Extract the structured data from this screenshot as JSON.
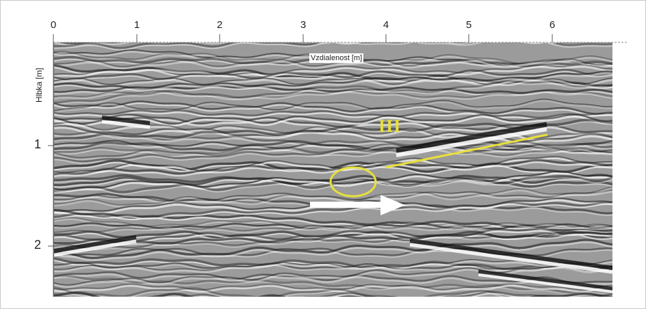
{
  "figure": {
    "x_axis": {
      "title": "Vzdialenost [m]",
      "ticks": [
        "0",
        "1",
        "2",
        "3",
        "4",
        "5",
        "6"
      ]
    },
    "y_axis": {
      "title": "Hlbka [m]",
      "ticks": [
        "1",
        "2"
      ]
    },
    "annotations": {
      "layer_label": "III",
      "layer_line_color": "#e8e03a",
      "ellipse_color": "#e8e03a",
      "arrow_color": "#ffffff"
    }
  }
}
